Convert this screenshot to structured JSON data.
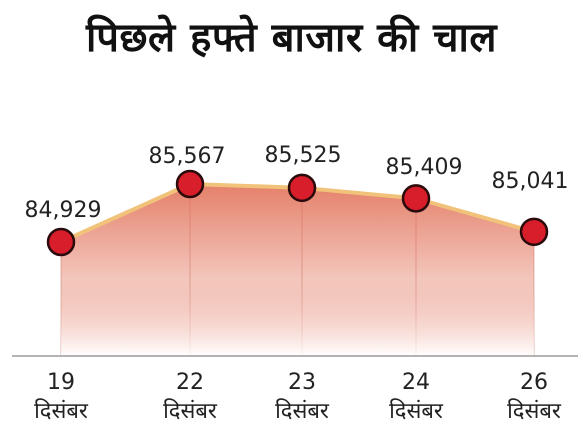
{
  "title": "पिछले हफ्ते बाजार की चाल",
  "colors": {
    "marker_fill": "#d81d2b",
    "marker_stroke": "#2a0a0a",
    "area_top": "#e06a50",
    "area_bottom": "#ffffff",
    "line": "#f1c27a",
    "axis": "#9a9a9a"
  },
  "chart_data": {
    "type": "area",
    "categories": [
      {
        "day": "19",
        "month": "दिसंबर"
      },
      {
        "day": "22",
        "month": "दिसंबर"
      },
      {
        "day": "23",
        "month": "दिसंबर"
      },
      {
        "day": "24",
        "month": "दिसंबर"
      },
      {
        "day": "26",
        "month": "दिसंबर"
      }
    ],
    "values": [
      84929,
      85567,
      85525,
      85409,
      85041
    ],
    "value_labels": [
      "84,929",
      "85,567",
      "85,525",
      "85,409",
      "85,041"
    ],
    "title": "पिछले हफ्ते बाजार की चाल",
    "xlabel": "",
    "ylabel": "",
    "grid": false,
    "legend": "none"
  }
}
